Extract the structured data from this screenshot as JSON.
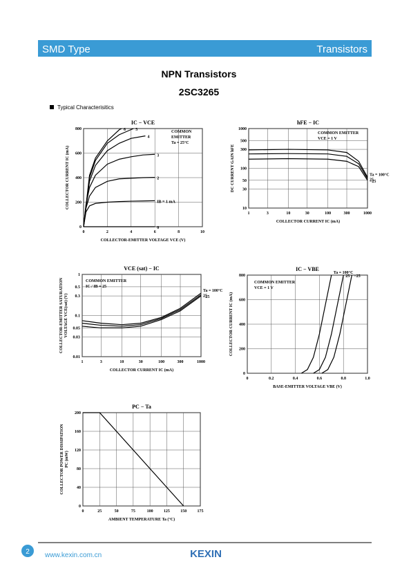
{
  "header": {
    "left": "SMD Type",
    "right": "Transistors"
  },
  "title": "NPN  Transistors",
  "part_number": "2SC3265",
  "section": "Typical  Characterisitics",
  "footer": {
    "page": "2",
    "url": "www.kexin.com.cn",
    "brand": "KEXIN"
  },
  "chart_data": [
    {
      "type": "line",
      "title": "IC − VCE",
      "xlabel": "COLLECTOR-EMITTER VOLTAGE  VCE  (V)",
      "ylabel": [
        "COLLECTOR CURRENT  IC  (mA)"
      ],
      "annotations": [
        "COMMON",
        "EMITTER",
        "Ta = 25°C"
      ],
      "color": "#000000",
      "grid": true,
      "xlim": [
        0,
        10
      ],
      "ylim": [
        0,
        800
      ],
      "xticks": [
        0,
        2,
        4,
        6,
        8,
        10
      ],
      "yticks": [
        0,
        200,
        400,
        600,
        800
      ],
      "series": [
        {
          "name": "6",
          "x": [
            0,
            0.5,
            1,
            2,
            3,
            3.2
          ],
          "values": [
            0,
            420,
            560,
            700,
            790,
            800
          ]
        },
        {
          "name": "5",
          "x": [
            0,
            0.5,
            1,
            2,
            3,
            4.2
          ],
          "values": [
            0,
            400,
            540,
            680,
            750,
            800
          ]
        },
        {
          "name": "4",
          "x": [
            0,
            0.5,
            1,
            2,
            3,
            4,
            5.2
          ],
          "values": [
            0,
            370,
            500,
            620,
            680,
            720,
            740
          ]
        },
        {
          "name": "3",
          "x": [
            0,
            0.2,
            0.5,
            1,
            2,
            3,
            4,
            5,
            6
          ],
          "values": [
            0,
            180,
            320,
            420,
            510,
            550,
            570,
            585,
            590
          ]
        },
        {
          "name": "2",
          "x": [
            0,
            0.2,
            0.5,
            1,
            2,
            3,
            4,
            5,
            6
          ],
          "values": [
            0,
            150,
            250,
            320,
            370,
            390,
            395,
            400,
            402
          ]
        },
        {
          "name": "IB = 1 mA",
          "x": [
            0,
            0.2,
            0.5,
            1,
            2,
            3,
            4,
            5,
            6
          ],
          "values": [
            0,
            120,
            170,
            190,
            200,
            205,
            208,
            210,
            212
          ]
        },
        {
          "name": "0",
          "x": [
            0,
            6
          ],
          "values": [
            0,
            0
          ]
        }
      ]
    },
    {
      "type": "line",
      "title": "hFE − IC",
      "xlabel": "COLLECTOR CURRENT  IC  (mA)",
      "ylabel": [
        "DC CURRENT GAIN  hFE"
      ],
      "annotations": [
        "COMMON EMITTER",
        "VCE = 1 V"
      ],
      "color": "#000000",
      "grid": true,
      "xscale": "log",
      "yscale": "log",
      "xlim": [
        1,
        1000
      ],
      "ylim": [
        10,
        1000
      ],
      "xticks": [
        1,
        3,
        10,
        30,
        100,
        300,
        1000
      ],
      "yticks": [
        10,
        30,
        50,
        100,
        300,
        500,
        1000
      ],
      "series": [
        {
          "name": "Ta = 100°C",
          "x": [
            1,
            10,
            100,
            300,
            600,
            1000
          ],
          "values": [
            290,
            300,
            290,
            250,
            150,
            60
          ]
        },
        {
          "name": "25",
          "x": [
            1,
            10,
            100,
            300,
            600,
            1000
          ],
          "values": [
            230,
            235,
            230,
            200,
            130,
            55
          ]
        },
        {
          "name": "−25",
          "x": [
            1,
            10,
            100,
            300,
            600,
            1000
          ],
          "values": [
            170,
            175,
            170,
            150,
            110,
            50
          ]
        }
      ]
    },
    {
      "type": "line",
      "title": "VCE (sat) − IC",
      "xlabel": "COLLECTOR CURRENT  IC  (mA)",
      "ylabel": [
        "COLLECTOR-EMITTER SATURATION",
        "VOLTAGE  VCE(sat)  (V)"
      ],
      "annotations": [
        "COMMON EMITTER",
        "IC / IB = 25"
      ],
      "color": "#000000",
      "grid": true,
      "xscale": "log",
      "yscale": "log",
      "xlim": [
        1,
        1000
      ],
      "ylim": [
        0.01,
        1
      ],
      "xticks": [
        1,
        3,
        10,
        30,
        100,
        300,
        1000
      ],
      "yticks": [
        0.01,
        0.03,
        0.05,
        0.1,
        0.3,
        0.5,
        1
      ],
      "series": [
        {
          "name": "Ta = 100°C",
          "x": [
            1,
            3,
            10,
            30,
            100,
            300,
            1000
          ],
          "values": [
            0.075,
            0.065,
            0.06,
            0.065,
            0.09,
            0.15,
            0.35
          ]
        },
        {
          "name": "25",
          "x": [
            1,
            3,
            10,
            30,
            100,
            300,
            1000
          ],
          "values": [
            0.065,
            0.058,
            0.055,
            0.06,
            0.085,
            0.14,
            0.32
          ]
        },
        {
          "name": "−25",
          "x": [
            1,
            3,
            10,
            30,
            100,
            300,
            1000
          ],
          "values": [
            0.055,
            0.05,
            0.05,
            0.055,
            0.08,
            0.13,
            0.3
          ]
        }
      ]
    },
    {
      "type": "line",
      "title": "IC − VBE",
      "xlabel": "BASE-EMITTER VOLTAGE  VBE  (V)",
      "ylabel": [
        "COLLECTOR CURRENT  IC  (mA)"
      ],
      "annotations": [
        "COMMON EMITTER",
        "VCE = 1 V"
      ],
      "color": "#000000",
      "grid": true,
      "xlim": [
        0,
        1
      ],
      "ylim": [
        0,
        800
      ],
      "xticks": [
        0,
        0.2,
        0.4,
        0.6,
        0.8,
        {
          "value": 1,
          "label": "1.0"
        }
      ],
      "yticks": [
        0,
        200,
        400,
        600,
        800
      ],
      "series": [
        {
          "name": "Ta = 100°C",
          "x": [
            0.45,
            0.5,
            0.55,
            0.6,
            0.65,
            0.7
          ],
          "values": [
            0,
            30,
            130,
            320,
            560,
            800
          ]
        },
        {
          "name": "25",
          "x": [
            0.55,
            0.6,
            0.65,
            0.7,
            0.75,
            0.8
          ],
          "values": [
            0,
            30,
            130,
            320,
            560,
            800
          ]
        },
        {
          "name": "−25",
          "x": [
            0.62,
            0.67,
            0.72,
            0.77,
            0.82,
            0.87
          ],
          "values": [
            0,
            30,
            130,
            320,
            560,
            800
          ]
        }
      ]
    },
    {
      "type": "line",
      "title": "PC − Ta",
      "xlabel": "AMBIENT TEMPERATURE  Ta  (°C)",
      "ylabel": [
        "COLLECTOR POWER DISSIPATION",
        "PC  (mW)"
      ],
      "annotations": [],
      "color": "#000000",
      "grid": true,
      "xlim": [
        0,
        175
      ],
      "ylim": [
        0,
        200
      ],
      "xticks": [
        0,
        25,
        50,
        75,
        100,
        125,
        150,
        175
      ],
      "yticks": [
        0,
        40,
        80,
        120,
        160,
        200
      ],
      "series": [
        {
          "x": [
            0,
            25,
            150
          ],
          "values": [
            200,
            200,
            0
          ]
        }
      ]
    }
  ]
}
